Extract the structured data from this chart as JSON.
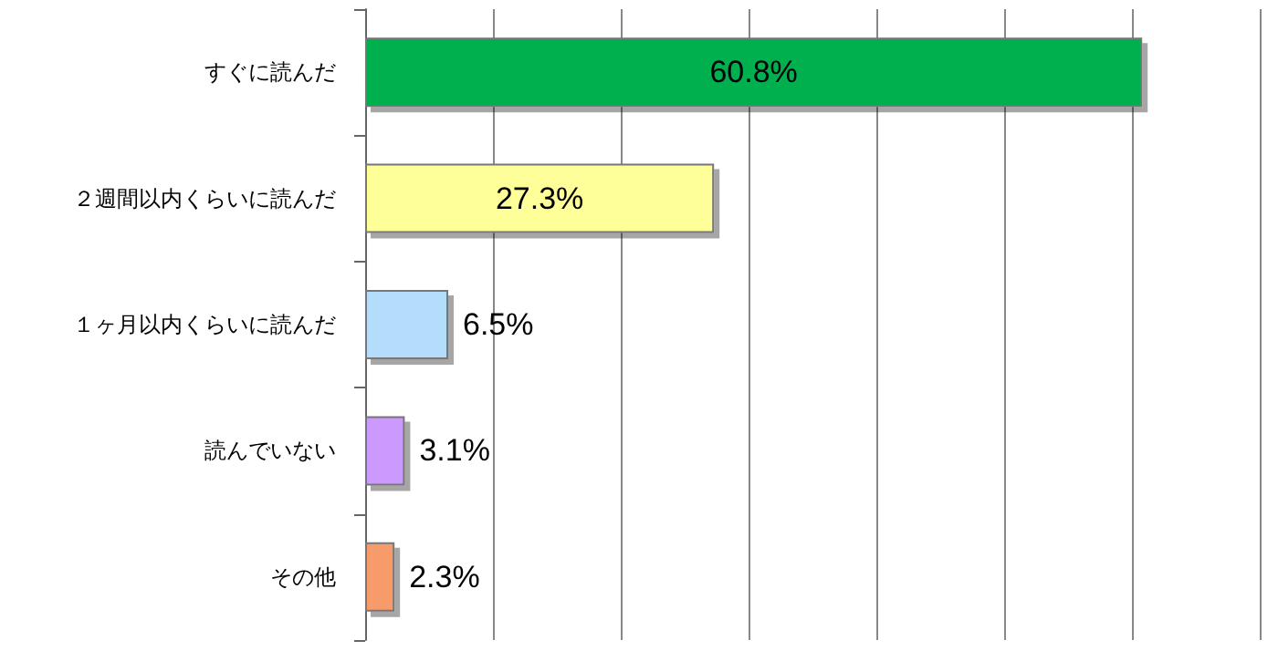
{
  "chart_data": {
    "type": "bar",
    "orientation": "horizontal",
    "categories": [
      "すぐに読んだ",
      "２週間以内くらいに読んだ",
      "１ヶ月以内くらいに読んだ",
      "読んでいない",
      "その他"
    ],
    "values": [
      60.8,
      27.3,
      6.5,
      3.1,
      2.3
    ],
    "colors": [
      "#00b050",
      "#ffff99",
      "#b3ddfb",
      "#cc99ff",
      "#f79b6b"
    ],
    "value_labels": [
      "60.8%",
      "27.3%",
      "6.5%",
      "3.1%",
      "2.3%"
    ],
    "xlim": [
      0,
      70
    ],
    "xticks": [
      {
        "value": 0,
        "label": null
      },
      {
        "value": 10,
        "label": null
      },
      {
        "value": 20,
        "label": null
      },
      {
        "value": 30,
        "label": null
      },
      {
        "value": 40,
        "label": null
      },
      {
        "value": 50,
        "label": null
      },
      {
        "value": 60,
        "label": null
      },
      {
        "value": 70,
        "label": null
      }
    ],
    "grid": "x",
    "tick_labels": "y"
  }
}
